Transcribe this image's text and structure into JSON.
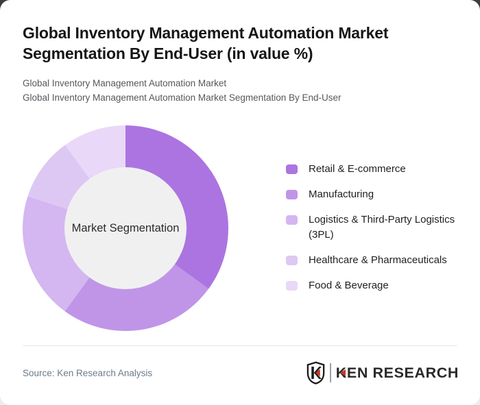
{
  "card": {
    "title": "Global Inventory Management Automation Market Segmentation By End-User (in value %)",
    "subtitle_lines": [
      "Global Inventory Management Automation Market",
      "Global Inventory Management Automation Market Segmentation By End-User"
    ]
  },
  "chart_data": {
    "type": "pie",
    "subtype": "donut",
    "title": "Global Inventory Management Automation Market Segmentation By End-User (in value %)",
    "center_label": "Market Segmentation",
    "unit": "% of market value (estimated from arc angles; no numeric labels shown)",
    "labels": [
      "Retail & E-commerce",
      "Manufacturing",
      "Logistics & Third-Party Logistics (3PL)",
      "Healthcare & Pharmaceuticals",
      "Food & Beverage"
    ],
    "values": [
      35,
      25,
      20,
      10,
      10
    ],
    "colors": [
      "#ac74e0",
      "#c095e8",
      "#d4b6f0",
      "#ddc8f3",
      "#e9d8f7"
    ],
    "hole_color": "#f0f0f1",
    "start_angle_deg": 0,
    "direction": "clockwise",
    "legend_position": "right",
    "grid": false
  },
  "footer": {
    "source": "Source: Ken Research Analysis",
    "logo": {
      "brand": "KEN RESEARCH",
      "mark_letter": "K"
    }
  },
  "theme": {
    "card_background": "#ffffff",
    "backdrop_top": "#3c3c3c",
    "title_color": "#161616",
    "subtitle_color": "#55575c",
    "legend_text_color": "#1f1f1f",
    "source_text_color": "#6d7a8a",
    "divider_color": "#e9e9e9",
    "logo_dark": "#2a2a2a",
    "logo_red": "#c0392b"
  }
}
